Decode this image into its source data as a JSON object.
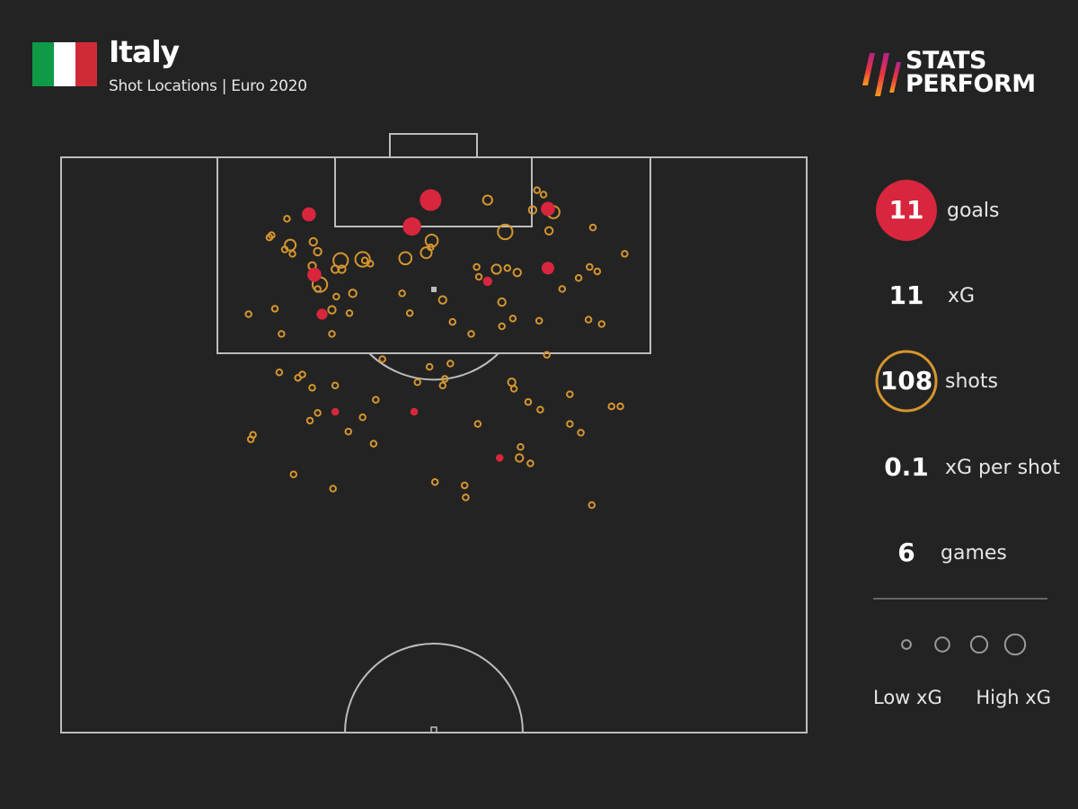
{
  "header": {
    "title": "Italy",
    "subtitle": "Shot Locations | Euro 2020",
    "flag_colors": [
      "#0f9a48",
      "#ffffff",
      "#cf2b37"
    ]
  },
  "logo": {
    "line1": "STATS",
    "line2": "PERFORM"
  },
  "colors": {
    "goal": "#d7263d",
    "shot": "#d4952f",
    "lines": "#bdbdbd",
    "background": "#232323"
  },
  "stats": [
    {
      "value": "11",
      "label": "goals"
    },
    {
      "value": "11",
      "label": "xG"
    },
    {
      "value": "108",
      "label": "shots"
    },
    {
      "value": "0.1",
      "label": "xG per shot"
    },
    {
      "value": "6",
      "label": "games"
    }
  ],
  "legend": {
    "low": "Low xG",
    "high": "High xG",
    "sizes_xg": [
      0.05,
      0.2,
      0.3,
      0.5
    ]
  },
  "chart_data": {
    "type": "scatter",
    "description_units": "x = metres across pitch from left touchline (0-68), y = metres from goal line",
    "xlim": [
      0,
      68
    ],
    "ylim": [
      0,
      52.5
    ],
    "shots": [
      {
        "x": 33.7,
        "y": 3.9,
        "xg": 0.6,
        "goal": true
      },
      {
        "x": 38.9,
        "y": 3.9,
        "xg": 0.1,
        "goal": false
      },
      {
        "x": 43.4,
        "y": 3.0,
        "xg": 0.03,
        "goal": false
      },
      {
        "x": 44.0,
        "y": 3.4,
        "xg": 0.03,
        "goal": false
      },
      {
        "x": 44.4,
        "y": 4.7,
        "xg": 0.2,
        "goal": true
      },
      {
        "x": 44.9,
        "y": 5.0,
        "xg": 0.2,
        "goal": false
      },
      {
        "x": 43.0,
        "y": 4.8,
        "xg": 0.06,
        "goal": false
      },
      {
        "x": 32.0,
        "y": 6.3,
        "xg": 0.4,
        "goal": true
      },
      {
        "x": 22.6,
        "y": 5.2,
        "xg": 0.2,
        "goal": true
      },
      {
        "x": 20.6,
        "y": 5.6,
        "xg": 0.03,
        "goal": false
      },
      {
        "x": 40.5,
        "y": 6.8,
        "xg": 0.3,
        "goal": false
      },
      {
        "x": 44.5,
        "y": 6.7,
        "xg": 0.06,
        "goal": false
      },
      {
        "x": 48.5,
        "y": 6.4,
        "xg": 0.03,
        "goal": false
      },
      {
        "x": 51.4,
        "y": 8.8,
        "xg": 0.03,
        "goal": false
      },
      {
        "x": 19.2,
        "y": 7.1,
        "xg": 0.03,
        "goal": false
      },
      {
        "x": 19.0,
        "y": 7.3,
        "xg": 0.03,
        "goal": false
      },
      {
        "x": 20.9,
        "y": 8.0,
        "xg": 0.15,
        "goal": false
      },
      {
        "x": 20.4,
        "y": 8.4,
        "xg": 0.03,
        "goal": false
      },
      {
        "x": 21.1,
        "y": 8.8,
        "xg": 0.03,
        "goal": false
      },
      {
        "x": 23.0,
        "y": 7.7,
        "xg": 0.06,
        "goal": false
      },
      {
        "x": 23.4,
        "y": 8.6,
        "xg": 0.06,
        "goal": false
      },
      {
        "x": 25.5,
        "y": 9.4,
        "xg": 0.3,
        "goal": false
      },
      {
        "x": 25.0,
        "y": 10.2,
        "xg": 0.06,
        "goal": false
      },
      {
        "x": 25.6,
        "y": 10.2,
        "xg": 0.06,
        "goal": false
      },
      {
        "x": 27.5,
        "y": 9.3,
        "xg": 0.3,
        "goal": false
      },
      {
        "x": 28.2,
        "y": 9.7,
        "xg": 0.03,
        "goal": false
      },
      {
        "x": 27.7,
        "y": 9.4,
        "xg": 0.03,
        "goal": false
      },
      {
        "x": 31.4,
        "y": 9.2,
        "xg": 0.2,
        "goal": false
      },
      {
        "x": 33.8,
        "y": 7.6,
        "xg": 0.2,
        "goal": false
      },
      {
        "x": 33.3,
        "y": 8.7,
        "xg": 0.15,
        "goal": false
      },
      {
        "x": 33.7,
        "y": 8.2,
        "xg": 0.03,
        "goal": false
      },
      {
        "x": 22.9,
        "y": 9.9,
        "xg": 0.06,
        "goal": false
      },
      {
        "x": 23.1,
        "y": 10.7,
        "xg": 0.2,
        "goal": true
      },
      {
        "x": 23.6,
        "y": 11.6,
        "xg": 0.3,
        "goal": false
      },
      {
        "x": 23.4,
        "y": 12.0,
        "xg": 0.03,
        "goal": false
      },
      {
        "x": 37.9,
        "y": 10.0,
        "xg": 0.03,
        "goal": false
      },
      {
        "x": 39.7,
        "y": 10.2,
        "xg": 0.1,
        "goal": false
      },
      {
        "x": 40.7,
        "y": 10.1,
        "xg": 0.03,
        "goal": false
      },
      {
        "x": 41.6,
        "y": 10.5,
        "xg": 0.06,
        "goal": false
      },
      {
        "x": 38.1,
        "y": 10.9,
        "xg": 0.03,
        "goal": false
      },
      {
        "x": 38.9,
        "y": 11.3,
        "xg": 0.06,
        "goal": true
      },
      {
        "x": 44.4,
        "y": 10.1,
        "xg": 0.15,
        "goal": true
      },
      {
        "x": 48.2,
        "y": 10.0,
        "xg": 0.03,
        "goal": false
      },
      {
        "x": 48.9,
        "y": 10.4,
        "xg": 0.03,
        "goal": false
      },
      {
        "x": 47.2,
        "y": 11.0,
        "xg": 0.03,
        "goal": false
      },
      {
        "x": 45.7,
        "y": 12.0,
        "xg": 0.03,
        "goal": false
      },
      {
        "x": 25.1,
        "y": 12.7,
        "xg": 0.03,
        "goal": false
      },
      {
        "x": 26.6,
        "y": 12.4,
        "xg": 0.06,
        "goal": false
      },
      {
        "x": 31.1,
        "y": 12.4,
        "xg": 0.03,
        "goal": false
      },
      {
        "x": 34.8,
        "y": 13.0,
        "xg": 0.06,
        "goal": false
      },
      {
        "x": 40.2,
        "y": 13.2,
        "xg": 0.06,
        "goal": false
      },
      {
        "x": 17.1,
        "y": 14.3,
        "xg": 0.03,
        "goal": false
      },
      {
        "x": 19.5,
        "y": 13.8,
        "xg": 0.03,
        "goal": false
      },
      {
        "x": 23.8,
        "y": 14.3,
        "xg": 0.1,
        "goal": true
      },
      {
        "x": 24.7,
        "y": 13.9,
        "xg": 0.06,
        "goal": false
      },
      {
        "x": 26.3,
        "y": 14.2,
        "xg": 0.03,
        "goal": false
      },
      {
        "x": 31.8,
        "y": 14.2,
        "xg": 0.03,
        "goal": false
      },
      {
        "x": 35.7,
        "y": 15.0,
        "xg": 0.03,
        "goal": false
      },
      {
        "x": 41.2,
        "y": 14.7,
        "xg": 0.03,
        "goal": false
      },
      {
        "x": 40.2,
        "y": 15.4,
        "xg": 0.03,
        "goal": false
      },
      {
        "x": 43.6,
        "y": 14.9,
        "xg": 0.03,
        "goal": false
      },
      {
        "x": 48.1,
        "y": 14.8,
        "xg": 0.03,
        "goal": false
      },
      {
        "x": 49.3,
        "y": 15.2,
        "xg": 0.03,
        "goal": false
      },
      {
        "x": 20.1,
        "y": 16.1,
        "xg": 0.03,
        "goal": false
      },
      {
        "x": 24.7,
        "y": 16.1,
        "xg": 0.03,
        "goal": false
      },
      {
        "x": 37.4,
        "y": 16.1,
        "xg": 0.03,
        "goal": false
      },
      {
        "x": 44.3,
        "y": 18.0,
        "xg": 0.03,
        "goal": false
      },
      {
        "x": 29.3,
        "y": 18.4,
        "xg": 0.03,
        "goal": false
      },
      {
        "x": 33.6,
        "y": 19.1,
        "xg": 0.03,
        "goal": false
      },
      {
        "x": 35.5,
        "y": 18.8,
        "xg": 0.03,
        "goal": false
      },
      {
        "x": 35.0,
        "y": 20.2,
        "xg": 0.03,
        "goal": false
      },
      {
        "x": 32.5,
        "y": 20.5,
        "xg": 0.03,
        "goal": false
      },
      {
        "x": 34.8,
        "y": 20.8,
        "xg": 0.03,
        "goal": false
      },
      {
        "x": 19.9,
        "y": 19.6,
        "xg": 0.03,
        "goal": false
      },
      {
        "x": 22.0,
        "y": 19.8,
        "xg": 0.03,
        "goal": false
      },
      {
        "x": 21.6,
        "y": 20.1,
        "xg": 0.03,
        "goal": false
      },
      {
        "x": 22.9,
        "y": 21.0,
        "xg": 0.03,
        "goal": false
      },
      {
        "x": 25.0,
        "y": 20.8,
        "xg": 0.03,
        "goal": false
      },
      {
        "x": 41.1,
        "y": 20.5,
        "xg": 0.06,
        "goal": false
      },
      {
        "x": 41.3,
        "y": 21.1,
        "xg": 0.03,
        "goal": false
      },
      {
        "x": 46.4,
        "y": 21.6,
        "xg": 0.03,
        "goal": false
      },
      {
        "x": 42.6,
        "y": 22.3,
        "xg": 0.03,
        "goal": false
      },
      {
        "x": 43.7,
        "y": 23.0,
        "xg": 0.03,
        "goal": false
      },
      {
        "x": 50.2,
        "y": 22.7,
        "xg": 0.03,
        "goal": false
      },
      {
        "x": 51.0,
        "y": 22.7,
        "xg": 0.03,
        "goal": false
      },
      {
        "x": 25.0,
        "y": 23.2,
        "xg": 0.03,
        "goal": true
      },
      {
        "x": 32.2,
        "y": 23.2,
        "xg": 0.03,
        "goal": true
      },
      {
        "x": 28.7,
        "y": 22.1,
        "xg": 0.03,
        "goal": false
      },
      {
        "x": 23.4,
        "y": 23.3,
        "xg": 0.03,
        "goal": false
      },
      {
        "x": 22.7,
        "y": 24.0,
        "xg": 0.03,
        "goal": false
      },
      {
        "x": 27.5,
        "y": 23.7,
        "xg": 0.03,
        "goal": false
      },
      {
        "x": 26.2,
        "y": 25.0,
        "xg": 0.03,
        "goal": false
      },
      {
        "x": 38.0,
        "y": 24.3,
        "xg": 0.03,
        "goal": false
      },
      {
        "x": 46.4,
        "y": 24.3,
        "xg": 0.03,
        "goal": false
      },
      {
        "x": 47.4,
        "y": 25.1,
        "xg": 0.03,
        "goal": false
      },
      {
        "x": 17.5,
        "y": 25.3,
        "xg": 0.03,
        "goal": false
      },
      {
        "x": 17.3,
        "y": 25.7,
        "xg": 0.03,
        "goal": false
      },
      {
        "x": 28.5,
        "y": 26.1,
        "xg": 0.03,
        "goal": false
      },
      {
        "x": 40.0,
        "y": 27.4,
        "xg": 0.03,
        "goal": true
      },
      {
        "x": 41.9,
        "y": 26.4,
        "xg": 0.03,
        "goal": false
      },
      {
        "x": 41.8,
        "y": 27.4,
        "xg": 0.06,
        "goal": false
      },
      {
        "x": 42.8,
        "y": 27.9,
        "xg": 0.03,
        "goal": false
      },
      {
        "x": 21.2,
        "y": 28.9,
        "xg": 0.03,
        "goal": false
      },
      {
        "x": 24.8,
        "y": 30.2,
        "xg": 0.03,
        "goal": false
      },
      {
        "x": 34.1,
        "y": 29.6,
        "xg": 0.03,
        "goal": false
      },
      {
        "x": 36.8,
        "y": 29.9,
        "xg": 0.03,
        "goal": false
      },
      {
        "x": 36.9,
        "y": 31.0,
        "xg": 0.03,
        "goal": false
      },
      {
        "x": 48.4,
        "y": 31.7,
        "xg": 0.03,
        "goal": false
      }
    ]
  }
}
